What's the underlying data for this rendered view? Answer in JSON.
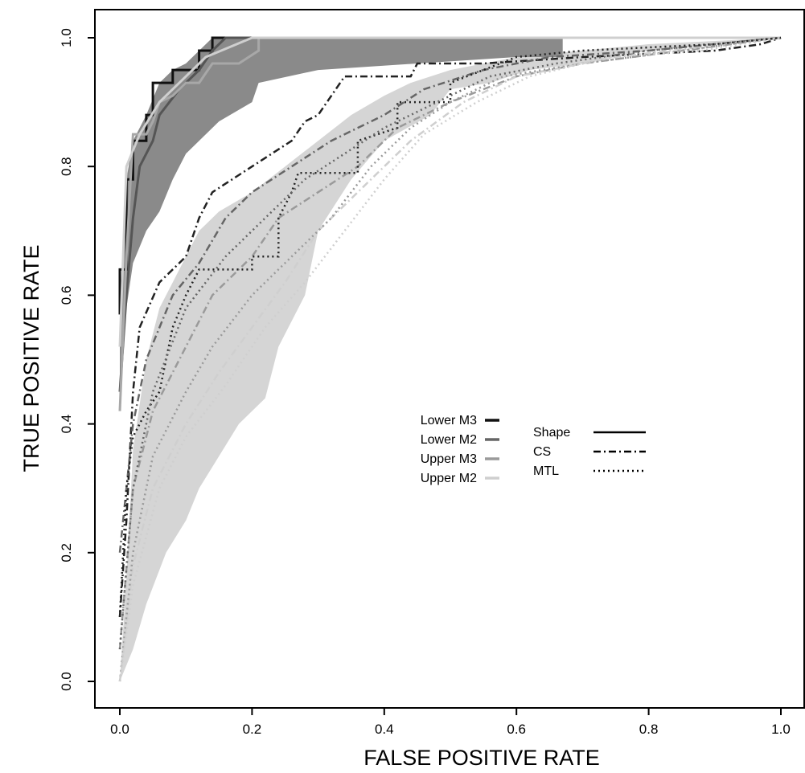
{
  "chart_data": {
    "type": "line",
    "title": "",
    "xlabel": "FALSE POSITIVE RATE",
    "ylabel": "TRUE POSITIVE RATE",
    "xlim": [
      0,
      1
    ],
    "ylim": [
      0,
      1
    ],
    "x_ticks": [
      "0.0",
      "0.2",
      "0.4",
      "0.6",
      "0.8",
      "1.0"
    ],
    "y_ticks": [
      "0.0",
      "0.2",
      "0.4",
      "0.6",
      "0.8",
      "1.0"
    ],
    "grid": false,
    "legend_tooth": {
      "position": "center",
      "entries": [
        {
          "label": "Lower M3",
          "color": "#111111"
        },
        {
          "label": "Lower M2",
          "color": "#666666"
        },
        {
          "label": "Upper M3",
          "color": "#9a9a9a"
        },
        {
          "label": "Upper M2",
          "color": "#cfcfcf"
        }
      ]
    },
    "legend_method": {
      "position": "center-right",
      "entries": [
        {
          "label": "Shape",
          "dash": "solid"
        },
        {
          "label": "CS",
          "dash": "dashdot"
        },
        {
          "label": "MTL",
          "dash": "dotted"
        }
      ]
    },
    "bands": [
      {
        "fill": "#d5d5d5",
        "upper": [
          [
            0.0,
            0.0
          ],
          [
            0.01,
            0.16
          ],
          [
            0.02,
            0.36
          ],
          [
            0.04,
            0.5
          ],
          [
            0.06,
            0.58
          ],
          [
            0.08,
            0.62
          ],
          [
            0.1,
            0.66
          ],
          [
            0.12,
            0.7
          ],
          [
            0.15,
            0.73
          ],
          [
            0.2,
            0.76
          ],
          [
            0.25,
            0.8
          ],
          [
            0.3,
            0.84
          ],
          [
            0.35,
            0.88
          ],
          [
            0.4,
            0.91
          ],
          [
            0.44,
            0.93
          ],
          [
            0.5,
            0.95
          ],
          [
            0.6,
            0.97
          ],
          [
            0.7,
            0.98
          ],
          [
            0.8,
            0.99
          ],
          [
            1.0,
            1.0
          ]
        ],
        "lower": [
          [
            1.0,
            1.0
          ],
          [
            0.8,
            0.98
          ],
          [
            0.7,
            0.96
          ],
          [
            0.62,
            0.95
          ],
          [
            0.56,
            0.93
          ],
          [
            0.5,
            0.92
          ],
          [
            0.47,
            0.88
          ],
          [
            0.4,
            0.84
          ],
          [
            0.35,
            0.78
          ],
          [
            0.3,
            0.7
          ],
          [
            0.28,
            0.6
          ],
          [
            0.24,
            0.52
          ],
          [
            0.22,
            0.44
          ],
          [
            0.18,
            0.4
          ],
          [
            0.15,
            0.35
          ],
          [
            0.12,
            0.3
          ],
          [
            0.1,
            0.25
          ],
          [
            0.07,
            0.2
          ],
          [
            0.04,
            0.12
          ],
          [
            0.02,
            0.05
          ],
          [
            0.0,
            0.0
          ]
        ]
      },
      {
        "fill": "#8a8a8a",
        "upper": [
          [
            0.0,
            0.57
          ],
          [
            0.01,
            0.78
          ],
          [
            0.02,
            0.84
          ],
          [
            0.04,
            0.88
          ],
          [
            0.06,
            0.93
          ],
          [
            0.08,
            0.95
          ],
          [
            0.1,
            0.96
          ],
          [
            0.14,
            1.0
          ],
          [
            0.2,
            1.0
          ],
          [
            0.3,
            1.0
          ],
          [
            0.4,
            1.0
          ],
          [
            0.5,
            1.0
          ],
          [
            0.6,
            1.0
          ],
          [
            0.67,
            1.0
          ]
        ],
        "lower": [
          [
            0.67,
            0.97
          ],
          [
            0.6,
            0.97
          ],
          [
            0.45,
            0.96
          ],
          [
            0.3,
            0.95
          ],
          [
            0.21,
            0.93
          ],
          [
            0.2,
            0.9
          ],
          [
            0.15,
            0.87
          ],
          [
            0.12,
            0.84
          ],
          [
            0.1,
            0.82
          ],
          [
            0.08,
            0.78
          ],
          [
            0.06,
            0.73
          ],
          [
            0.04,
            0.7
          ],
          [
            0.02,
            0.65
          ],
          [
            0.01,
            0.58
          ],
          [
            0.0,
            0.42
          ]
        ]
      }
    ],
    "series": [
      {
        "group": "Lower M3",
        "method": "Shape",
        "color": "#111111",
        "dash": "solid",
        "points": [
          [
            0.0,
            0.57
          ],
          [
            0.0,
            0.64
          ],
          [
            0.01,
            0.64
          ],
          [
            0.01,
            0.78
          ],
          [
            0.02,
            0.78
          ],
          [
            0.02,
            0.84
          ],
          [
            0.04,
            0.84
          ],
          [
            0.04,
            0.88
          ],
          [
            0.05,
            0.88
          ],
          [
            0.05,
            0.93
          ],
          [
            0.08,
            0.93
          ],
          [
            0.08,
            0.95
          ],
          [
            0.12,
            0.95
          ],
          [
            0.12,
            0.98
          ],
          [
            0.14,
            0.98
          ],
          [
            0.14,
            1.0
          ],
          [
            0.2,
            1.0
          ]
        ]
      },
      {
        "group": "Lower M2",
        "method": "Shape",
        "color": "#555555",
        "dash": "solid",
        "points": [
          [
            0.0,
            0.45
          ],
          [
            0.01,
            0.6
          ],
          [
            0.02,
            0.72
          ],
          [
            0.03,
            0.8
          ],
          [
            0.05,
            0.84
          ],
          [
            0.06,
            0.88
          ],
          [
            0.09,
            0.92
          ],
          [
            0.12,
            0.95
          ],
          [
            0.14,
            0.98
          ],
          [
            0.16,
            1.0
          ],
          [
            0.22,
            1.0
          ]
        ]
      },
      {
        "group": "Upper M3",
        "method": "Shape",
        "color": "#a8a8a8",
        "dash": "solid",
        "points": [
          [
            0.0,
            0.42
          ],
          [
            0.01,
            0.66
          ],
          [
            0.02,
            0.85
          ],
          [
            0.04,
            0.85
          ],
          [
            0.05,
            0.87
          ],
          [
            0.06,
            0.9
          ],
          [
            0.08,
            0.91
          ],
          [
            0.1,
            0.93
          ],
          [
            0.12,
            0.93
          ],
          [
            0.14,
            0.96
          ],
          [
            0.18,
            0.96
          ],
          [
            0.21,
            0.98
          ],
          [
            0.21,
            1.0
          ],
          [
            0.3,
            1.0
          ]
        ]
      },
      {
        "group": "Upper M2",
        "method": "Shape",
        "color": "#cfcfcf",
        "dash": "solid",
        "points": [
          [
            0.0,
            0.52
          ],
          [
            0.01,
            0.8
          ],
          [
            0.03,
            0.85
          ],
          [
            0.06,
            0.9
          ],
          [
            0.1,
            0.94
          ],
          [
            0.13,
            0.97
          ],
          [
            0.2,
            1.0
          ],
          [
            0.6,
            1.0
          ],
          [
            1.0,
            1.0
          ]
        ]
      },
      {
        "group": "Lower M3",
        "method": "CS",
        "color": "#222222",
        "dash": "dashdot",
        "points": [
          [
            0.0,
            0.1
          ],
          [
            0.01,
            0.25
          ],
          [
            0.02,
            0.45
          ],
          [
            0.03,
            0.55
          ],
          [
            0.06,
            0.62
          ],
          [
            0.1,
            0.66
          ],
          [
            0.12,
            0.72
          ],
          [
            0.14,
            0.76
          ],
          [
            0.2,
            0.8
          ],
          [
            0.26,
            0.84
          ],
          [
            0.28,
            0.87
          ],
          [
            0.3,
            0.88
          ],
          [
            0.34,
            0.94
          ],
          [
            0.44,
            0.94
          ],
          [
            0.45,
            0.96
          ],
          [
            0.55,
            0.96
          ],
          [
            0.7,
            0.97
          ],
          [
            0.9,
            0.98
          ],
          [
            0.97,
            0.99
          ],
          [
            1.0,
            1.0
          ]
        ]
      },
      {
        "group": "Lower M2",
        "method": "CS",
        "color": "#666666",
        "dash": "dashdot",
        "points": [
          [
            0.0,
            0.2
          ],
          [
            0.02,
            0.4
          ],
          [
            0.04,
            0.5
          ],
          [
            0.08,
            0.6
          ],
          [
            0.12,
            0.65
          ],
          [
            0.16,
            0.72
          ],
          [
            0.2,
            0.76
          ],
          [
            0.26,
            0.8
          ],
          [
            0.32,
            0.84
          ],
          [
            0.4,
            0.88
          ],
          [
            0.46,
            0.92
          ],
          [
            0.55,
            0.95
          ],
          [
            0.65,
            0.97
          ],
          [
            0.8,
            0.98
          ],
          [
            0.9,
            0.99
          ],
          [
            1.0,
            1.0
          ]
        ]
      },
      {
        "group": "Upper M3",
        "method": "CS",
        "color": "#9a9a9a",
        "dash": "dashdot",
        "points": [
          [
            0.0,
            0.05
          ],
          [
            0.02,
            0.3
          ],
          [
            0.05,
            0.42
          ],
          [
            0.1,
            0.52
          ],
          [
            0.14,
            0.6
          ],
          [
            0.2,
            0.66
          ],
          [
            0.24,
            0.72
          ],
          [
            0.3,
            0.76
          ],
          [
            0.36,
            0.8
          ],
          [
            0.42,
            0.86
          ],
          [
            0.5,
            0.9
          ],
          [
            0.6,
            0.94
          ],
          [
            0.7,
            0.96
          ],
          [
            0.85,
            0.98
          ],
          [
            1.0,
            1.0
          ]
        ]
      },
      {
        "group": "Upper M2",
        "method": "CS",
        "color": "#cfcfcf",
        "dash": "dashdot",
        "points": [
          [
            0.0,
            0.0
          ],
          [
            0.02,
            0.18
          ],
          [
            0.05,
            0.3
          ],
          [
            0.1,
            0.4
          ],
          [
            0.15,
            0.48
          ],
          [
            0.2,
            0.55
          ],
          [
            0.25,
            0.62
          ],
          [
            0.3,
            0.7
          ],
          [
            0.36,
            0.76
          ],
          [
            0.44,
            0.84
          ],
          [
            0.52,
            0.9
          ],
          [
            0.6,
            0.94
          ],
          [
            0.75,
            0.97
          ],
          [
            1.0,
            1.0
          ]
        ]
      },
      {
        "group": "Lower M3",
        "method": "MTL",
        "color": "#222222",
        "dash": "dotted",
        "points": [
          [
            0.0,
            0.1
          ],
          [
            0.01,
            0.3
          ],
          [
            0.02,
            0.38
          ],
          [
            0.04,
            0.42
          ],
          [
            0.06,
            0.45
          ],
          [
            0.07,
            0.5
          ],
          [
            0.08,
            0.55
          ],
          [
            0.1,
            0.6
          ],
          [
            0.12,
            0.64
          ],
          [
            0.2,
            0.64
          ],
          [
            0.2,
            0.66
          ],
          [
            0.24,
            0.66
          ],
          [
            0.24,
            0.72
          ],
          [
            0.26,
            0.76
          ],
          [
            0.27,
            0.79
          ],
          [
            0.36,
            0.79
          ],
          [
            0.36,
            0.84
          ],
          [
            0.42,
            0.86
          ],
          [
            0.42,
            0.9
          ],
          [
            0.5,
            0.9
          ],
          [
            0.5,
            0.93
          ],
          [
            0.55,
            0.95
          ],
          [
            0.6,
            0.97
          ],
          [
            0.7,
            0.98
          ],
          [
            0.9,
            0.99
          ],
          [
            1.0,
            1.0
          ]
        ]
      },
      {
        "group": "Lower M2",
        "method": "MTL",
        "color": "#666666",
        "dash": "dotted",
        "points": [
          [
            0.0,
            0.05
          ],
          [
            0.02,
            0.3
          ],
          [
            0.05,
            0.45
          ],
          [
            0.1,
            0.58
          ],
          [
            0.16,
            0.66
          ],
          [
            0.22,
            0.72
          ],
          [
            0.28,
            0.78
          ],
          [
            0.34,
            0.82
          ],
          [
            0.4,
            0.86
          ],
          [
            0.48,
            0.9
          ],
          [
            0.56,
            0.94
          ],
          [
            0.66,
            0.96
          ],
          [
            0.8,
            0.98
          ],
          [
            1.0,
            1.0
          ]
        ]
      },
      {
        "group": "Upper M3",
        "method": "MTL",
        "color": "#9a9a9a",
        "dash": "dotted",
        "points": [
          [
            0.0,
            0.0
          ],
          [
            0.02,
            0.2
          ],
          [
            0.05,
            0.35
          ],
          [
            0.1,
            0.45
          ],
          [
            0.14,
            0.52
          ],
          [
            0.2,
            0.6
          ],
          [
            0.26,
            0.66
          ],
          [
            0.32,
            0.72
          ],
          [
            0.38,
            0.8
          ],
          [
            0.44,
            0.86
          ],
          [
            0.5,
            0.9
          ],
          [
            0.58,
            0.94
          ],
          [
            0.7,
            0.96
          ],
          [
            0.85,
            0.98
          ],
          [
            1.0,
            1.0
          ]
        ]
      },
      {
        "group": "Upper M2",
        "method": "MTL",
        "color": "#cfcfcf",
        "dash": "dotted",
        "points": [
          [
            0.0,
            0.0
          ],
          [
            0.02,
            0.15
          ],
          [
            0.06,
            0.3
          ],
          [
            0.1,
            0.38
          ],
          [
            0.16,
            0.46
          ],
          [
            0.22,
            0.55
          ],
          [
            0.28,
            0.62
          ],
          [
            0.34,
            0.7
          ],
          [
            0.4,
            0.78
          ],
          [
            0.46,
            0.85
          ],
          [
            0.54,
            0.9
          ],
          [
            0.62,
            0.94
          ],
          [
            0.74,
            0.97
          ],
          [
            0.88,
            0.98
          ],
          [
            1.0,
            1.0
          ]
        ]
      }
    ]
  }
}
